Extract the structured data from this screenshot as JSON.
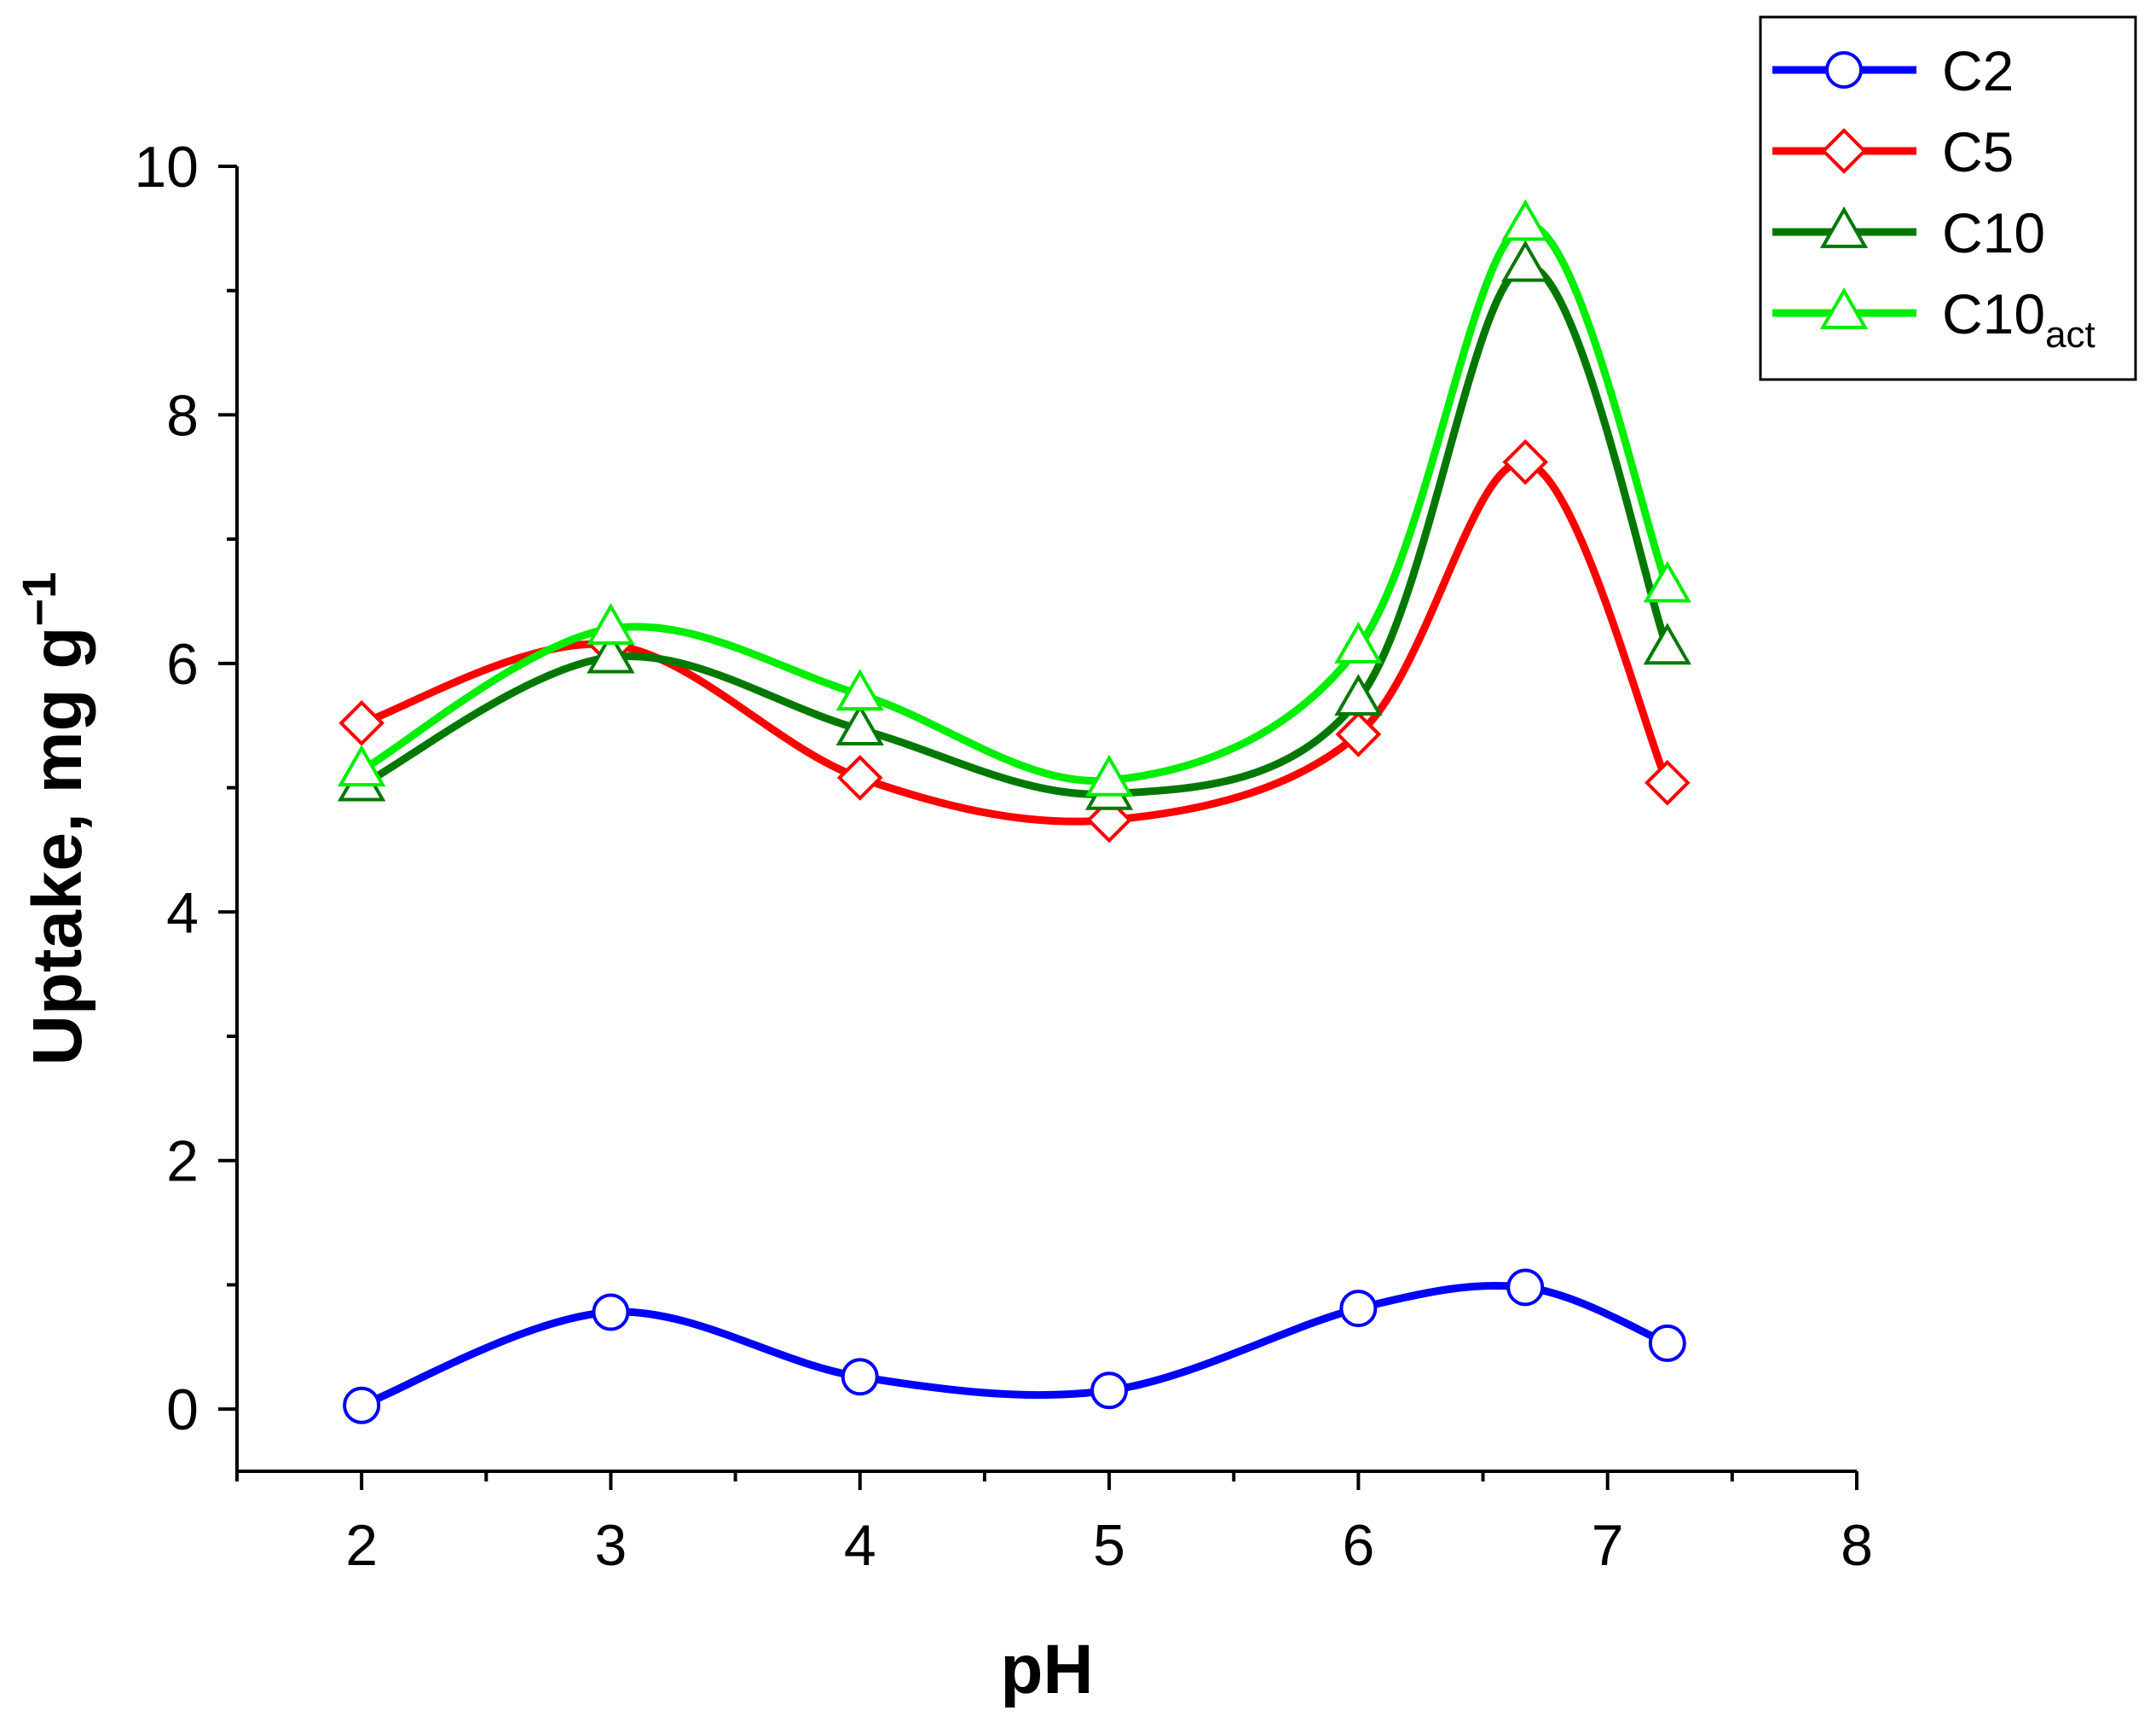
{
  "chart_data": {
    "type": "line",
    "title": "",
    "xlabel": "pH",
    "ylabel": "Uptake, mg g",
    "ylabel_superscript": "−1",
    "xlim": [
      1.5,
      8
    ],
    "ylim": [
      -0.5,
      10
    ],
    "xticks": [
      2,
      3,
      4,
      5,
      6,
      7,
      8
    ],
    "yticks": [
      0,
      2,
      4,
      6,
      8,
      10
    ],
    "legend_position": "top-right",
    "grid": false,
    "x": [
      2,
      3,
      4,
      5,
      6,
      6.67,
      7.24
    ],
    "series": [
      {
        "name": "C2",
        "subscript": "",
        "color": "#0000ff",
        "marker": "circle",
        "values": [
          0.03,
          0.78,
          0.26,
          0.15,
          0.81,
          0.98,
          0.53
        ]
      },
      {
        "name": "C5",
        "subscript": "",
        "color": "#ff0000",
        "marker": "diamond",
        "values": [
          5.52,
          6.15,
          5.08,
          4.74,
          5.43,
          7.62,
          5.04
        ]
      },
      {
        "name": "C10",
        "subscript": "",
        "color": "#007800",
        "marker": "triangle",
        "values": [
          5.02,
          6.05,
          5.47,
          4.95,
          5.71,
          9.2,
          6.12
        ]
      },
      {
        "name": "C10",
        "subscript": "act",
        "color": "#00ee00",
        "marker": "triangle",
        "values": [
          5.14,
          6.28,
          5.75,
          5.06,
          6.13,
          9.53,
          6.62
        ]
      }
    ]
  }
}
